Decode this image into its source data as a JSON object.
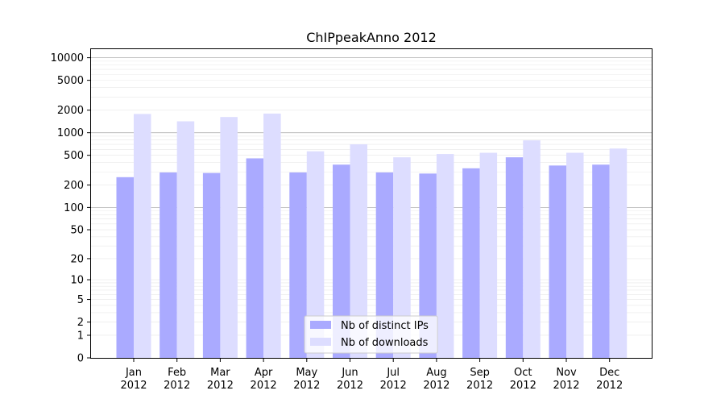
{
  "chart_data": {
    "type": "bar",
    "title": "ChIPpeakAnno 2012",
    "xlabel": "",
    "ylabel": "",
    "y_scale": "log(1+y)",
    "ylim": [
      0,
      13000
    ],
    "y_ticks": [
      0,
      1,
      2,
      5,
      10,
      20,
      50,
      100,
      200,
      500,
      1000,
      2000,
      5000,
      10000
    ],
    "grid": true,
    "legend_position": "bottom-center",
    "categories": [
      "Jan\n2012",
      "Feb\n2012",
      "Mar\n2012",
      "Apr\n2012",
      "May\n2012",
      "Jun\n2012",
      "Jul\n2012",
      "Aug\n2012",
      "Sep\n2012",
      "Oct\n2012",
      "Nov\n2012",
      "Dec\n2012"
    ],
    "series": [
      {
        "name": "Nb of distinct IPs",
        "color": "#aaaaff",
        "values": [
          255,
          295,
          290,
          455,
          295,
          375,
          295,
          285,
          335,
          470,
          365,
          375
        ]
      },
      {
        "name": "Nb of downloads",
        "color": "#ddddff",
        "values": [
          1780,
          1420,
          1620,
          1800,
          565,
          700,
          470,
          520,
          540,
          790,
          540,
          615
        ]
      }
    ]
  }
}
